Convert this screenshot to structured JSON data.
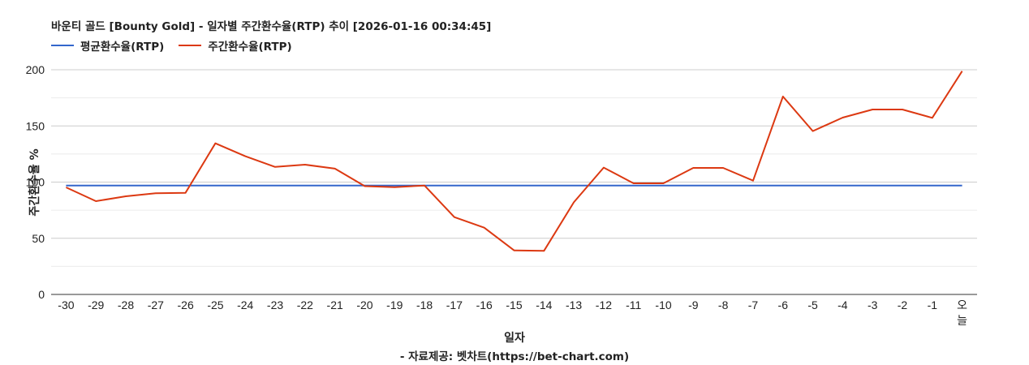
{
  "header": {
    "title": "바운티 골드 [Bounty Gold] - 일자별 주간환수율(RTP) 추이 [2026-01-16 00:34:45]"
  },
  "legend": [
    {
      "label": "평균환수율(RTP)",
      "color": "#3366cc"
    },
    {
      "label": "주간환수율(RTP)",
      "color": "#dc3912"
    }
  ],
  "axes": {
    "x_title": "일자",
    "y_title": "주간환수율 %"
  },
  "footer": {
    "source": "- 자료제공: 벳차트(https://bet-chart.com)"
  },
  "chart_data": {
    "type": "line",
    "title": "바운티 골드 [Bounty Gold] - 일자별 주간환수율(RTP) 추이 [2026-01-16 00:34:45]",
    "xlabel": "일자",
    "ylabel": "주간환수율 %",
    "ylim": [
      0,
      200
    ],
    "yticks": [
      0,
      50,
      100,
      150,
      200
    ],
    "grid": true,
    "legend_position": "top",
    "categories": [
      "-30",
      "-29",
      "-28",
      "-27",
      "-26",
      "-25",
      "-24",
      "-23",
      "-22",
      "-21",
      "-20",
      "-19",
      "-18",
      "-17",
      "-16",
      "-15",
      "-14",
      "-13",
      "-12",
      "-11",
      "-10",
      "-9",
      "-8",
      "-7",
      "-6",
      "-5",
      "-4",
      "-3",
      "-2",
      "-1",
      "오늘"
    ],
    "series": [
      {
        "name": "평균환수율(RTP)",
        "color": "#3366cc",
        "values": [
          97,
          97,
          97,
          97,
          97,
          97,
          97,
          97,
          97,
          97,
          97,
          97,
          97,
          97,
          97,
          97,
          97,
          97,
          97,
          97,
          97,
          97,
          97,
          97,
          97,
          97,
          97,
          97,
          97,
          97,
          97
        ]
      },
      {
        "name": "주간환수율(RTP)",
        "color": "#dc3912",
        "values": [
          95.3,
          83,
          87.4,
          90,
          90.5,
          134.5,
          123,
          113.5,
          115.5,
          112,
          96.4,
          95.5,
          97,
          68.8,
          59.4,
          39.2,
          38.8,
          82,
          112.9,
          98.9,
          98.9,
          112.6,
          112.6,
          101.3,
          176.2,
          145.4,
          157.4,
          164.6,
          164.6,
          157.2,
          198.8
        ]
      }
    ]
  }
}
